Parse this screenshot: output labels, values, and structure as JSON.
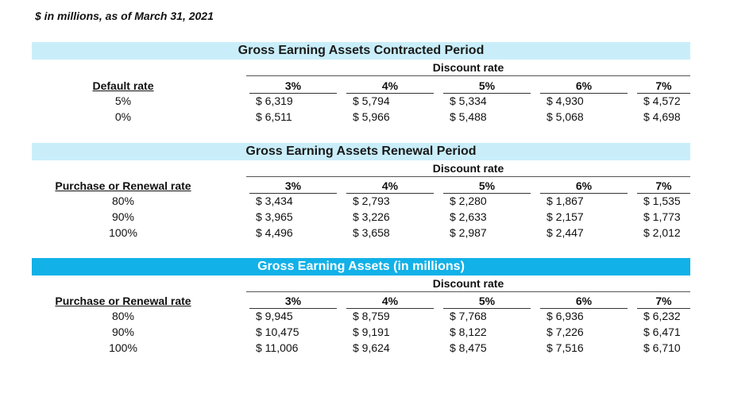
{
  "note": "$ in millions, as of March 31, 2021",
  "sections": [
    {
      "title": "Gross Earning Assets Contracted Period",
      "discount_label": "Discount rate",
      "row_header": "Default rate",
      "columns": [
        "3%",
        "4%",
        "5%",
        "6%",
        "7%"
      ],
      "rows": [
        {
          "label": "5%",
          "values": [
            "$ 6,319",
            "$ 5,794",
            "$ 5,334",
            "$ 4,930",
            "$ 4,572"
          ]
        },
        {
          "label": "0%",
          "values": [
            "$ 6,511",
            "$ 5,966",
            "$ 5,488",
            "$ 5,068",
            "$ 4,698"
          ]
        }
      ]
    },
    {
      "title": "Gross Earning Assets Renewal Period",
      "discount_label": "Discount rate",
      "row_header": "Purchase or Renewal rate",
      "columns": [
        "3%",
        "4%",
        "5%",
        "6%",
        "7%"
      ],
      "rows": [
        {
          "label": "80%",
          "values": [
            "$ 3,434",
            "$ 2,793",
            "$ 2,280",
            "$ 1,867",
            "$ 1,535"
          ]
        },
        {
          "label": "90%",
          "values": [
            "$ 3,965",
            "$ 3,226",
            "$ 2,633",
            "$ 2,157",
            "$ 1,773"
          ]
        },
        {
          "label": "100%",
          "values": [
            "$ 4,496",
            "$ 3,658",
            "$ 2,987",
            "$ 2,447",
            "$ 2,012"
          ]
        }
      ]
    },
    {
      "title": "Gross Earning Assets (in millions)",
      "discount_label": "Discount rate",
      "row_header": "Purchase or Renewal rate",
      "columns": [
        "3%",
        "4%",
        "5%",
        "6%",
        "7%"
      ],
      "rows": [
        {
          "label": "80%",
          "values": [
            "$ 9,945",
            "$ 8,759",
            "$ 7,768",
            "$ 6,936",
            "$ 6,232"
          ]
        },
        {
          "label": "90%",
          "values": [
            "$ 10,475",
            "$ 9,191",
            "$ 8,122",
            "$ 7,226",
            "$ 6,471"
          ]
        },
        {
          "label": "100%",
          "values": [
            "$ 11,006",
            "$ 9,624",
            "$ 8,475",
            "$ 7,516",
            "$ 6,710"
          ]
        }
      ]
    }
  ],
  "colors": {
    "banner_light": "#c9eefa",
    "banner_dark": "#12b1e8"
  }
}
